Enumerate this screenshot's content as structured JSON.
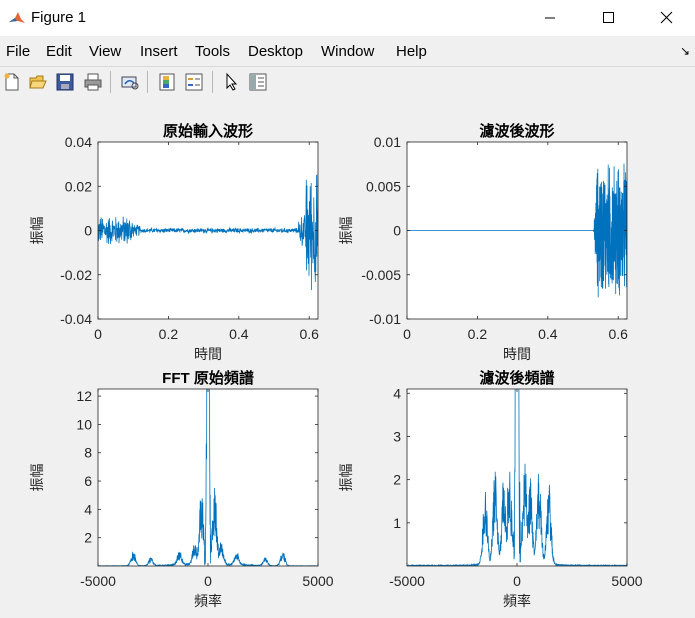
{
  "window": {
    "title": "Figure 1",
    "minimize": "─",
    "maximize": "☐",
    "close": "✕"
  },
  "menu": [
    "File",
    "Edit",
    "View",
    "Insert",
    "Tools",
    "Desktop",
    "Window",
    "Help"
  ],
  "toolbar_icons": [
    "new-figure-icon",
    "open-folder-icon",
    "save-icon",
    "print-icon",
    "link-plot-icon",
    "colorbar-icon",
    "legend-icon",
    "pointer-icon",
    "property-editor-icon"
  ],
  "colors": {
    "line": "#0072bd",
    "axes_bg": "#ffffff",
    "figure_bg": "#f0f0f0"
  },
  "chart_data": [
    {
      "type": "line",
      "title": "原始輸入波形",
      "xlabel": "時間",
      "ylabel": "振幅",
      "xlim": [
        0,
        0.625
      ],
      "ylim": [
        -0.04,
        0.04
      ],
      "xticks": [
        "0",
        "0.2",
        "0.4",
        "0.6"
      ],
      "yticks": [
        "0.04",
        "0.02",
        "0",
        "-0.02",
        "-0.04"
      ],
      "series": [
        {
          "description": "noisy signal: amplitude ~±0.008 for t<0.1, ~±0.001 until ~0.58, then bursts up to ±0.03 near 0.6"
        }
      ]
    },
    {
      "type": "line",
      "title": "濾波後波形",
      "xlabel": "時間",
      "ylabel": "振幅",
      "xlim": [
        0,
        0.625
      ],
      "ylim": [
        -0.01,
        0.01
      ],
      "xticks": [
        "0",
        "0.2",
        "0.4",
        "0.6"
      ],
      "yticks": [
        "0.01",
        "0.005",
        "0",
        "-0.005",
        "-0.01"
      ],
      "series": [
        {
          "description": "flat at 0 until ~0.53, then burst with amplitude up to ~0.009"
        }
      ]
    },
    {
      "type": "line",
      "title": "FFT 原始頻譜",
      "title_bold": "FFT",
      "title_rest": " 原始頻譜",
      "xlabel": "頻率",
      "ylabel": "振幅",
      "xlim": [
        -5000,
        5000
      ],
      "ylim": [
        0,
        12.5
      ],
      "xticks": [
        "-5000",
        "0",
        "5000"
      ],
      "yticks": [
        "12",
        "10",
        "8",
        "6",
        "4",
        "2"
      ],
      "peaks": [
        {
          "x": -3400,
          "y": 1.1
        },
        {
          "x": -2600,
          "y": 0.6
        },
        {
          "x": -1300,
          "y": 1.0
        },
        {
          "x": -600,
          "y": 1.6
        },
        {
          "x": -300,
          "y": 5.5
        },
        {
          "x": -50,
          "y": 12.5
        },
        {
          "x": 50,
          "y": 12.5
        },
        {
          "x": 300,
          "y": 5.5
        },
        {
          "x": 600,
          "y": 1.6
        },
        {
          "x": 1300,
          "y": 1.0
        },
        {
          "x": 2600,
          "y": 0.6
        },
        {
          "x": 3400,
          "y": 1.1
        }
      ]
    },
    {
      "type": "line",
      "title": "濾波後頻譜",
      "xlabel": "頻率",
      "ylabel": "振幅",
      "xlim": [
        -5000,
        5000
      ],
      "ylim": [
        0,
        4.1
      ],
      "xticks": [
        "-5000",
        "0",
        "5000"
      ],
      "yticks": [
        "4",
        "3",
        "2",
        "1"
      ],
      "peaks": [
        {
          "x": -1450,
          "y": 1.9
        },
        {
          "x": -1000,
          "y": 2.2
        },
        {
          "x": -600,
          "y": 2.0
        },
        {
          "x": -350,
          "y": 2.4
        },
        {
          "x": -80,
          "y": 4.1
        },
        {
          "x": 80,
          "y": 4.1
        },
        {
          "x": 350,
          "y": 2.4
        },
        {
          "x": 600,
          "y": 2.0
        },
        {
          "x": 1000,
          "y": 2.2
        },
        {
          "x": 1450,
          "y": 1.9
        }
      ]
    }
  ]
}
